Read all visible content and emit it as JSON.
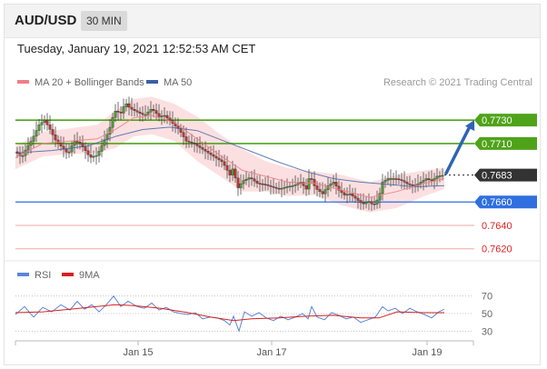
{
  "header": {
    "symbol": "AUD/USD",
    "interval": "30 MIN"
  },
  "timestamp": "Tuesday, January 19, 2021 12:52:53 AM CET",
  "legend": {
    "ma20": "MA 20 + Bollinger Bands",
    "ma50": "MA 50",
    "credit": "Research © 2021 Trading Central"
  },
  "colors": {
    "ma20": "#ee7f84",
    "ma50": "#3a60a6",
    "band": "#fbd5d7",
    "resistance": "#4fa319",
    "support": "#2f6fe0",
    "current": "#333333",
    "support_label_text": "#e02020",
    "arrow": "#2f64b4",
    "candle_up": "#4f9a2d",
    "candle_down": "#c8312a",
    "rsi": "#5a86d8",
    "rsi_ma": "#d8201e"
  },
  "chart_data": [
    {
      "type": "candlestick",
      "title": "AUD/USD",
      "interval": "30 MIN",
      "x_ticks": [
        "Jan 15",
        "Jan 17",
        "Jan 19"
      ],
      "ylim": [
        0.7612,
        0.7755
      ],
      "price_points": [
        [
          0,
          0.7703
        ],
        [
          7,
          0.7698
        ],
        [
          12,
          0.7706
        ],
        [
          18,
          0.7713
        ],
        [
          26,
          0.7726
        ],
        [
          32,
          0.773
        ],
        [
          38,
          0.7722
        ],
        [
          44,
          0.7713
        ],
        [
          52,
          0.7706
        ],
        [
          58,
          0.7701
        ],
        [
          64,
          0.7712
        ],
        [
          70,
          0.7711
        ],
        [
          76,
          0.7705
        ],
        [
          82,
          0.7698
        ],
        [
          90,
          0.77
        ],
        [
          96,
          0.771
        ],
        [
          103,
          0.7721
        ],
        [
          109,
          0.7738
        ],
        [
          116,
          0.7736
        ],
        [
          121,
          0.7745
        ],
        [
          126,
          0.774
        ],
        [
          134,
          0.7737
        ],
        [
          142,
          0.7734
        ],
        [
          150,
          0.774
        ],
        [
          158,
          0.7733
        ],
        [
          164,
          0.7734
        ],
        [
          172,
          0.7728
        ],
        [
          180,
          0.7722
        ],
        [
          188,
          0.7712
        ],
        [
          196,
          0.771
        ],
        [
          204,
          0.7706
        ],
        [
          212,
          0.7702
        ],
        [
          220,
          0.7698
        ],
        [
          228,
          0.7694
        ],
        [
          236,
          0.7683
        ],
        [
          240,
          0.769
        ],
        [
          244,
          0.7671
        ],
        [
          250,
          0.7678
        ],
        [
          258,
          0.7681
        ],
        [
          266,
          0.7676
        ],
        [
          274,
          0.7675
        ],
        [
          282,
          0.7673
        ],
        [
          290,
          0.7671
        ],
        [
          298,
          0.7673
        ],
        [
          306,
          0.7674
        ],
        [
          314,
          0.7677
        ],
        [
          320,
          0.7671
        ],
        [
          324,
          0.7683
        ],
        [
          330,
          0.7672
        ],
        [
          338,
          0.7667
        ],
        [
          344,
          0.7674
        ],
        [
          350,
          0.7677
        ],
        [
          356,
          0.767
        ],
        [
          362,
          0.7666
        ],
        [
          368,
          0.7667
        ],
        [
          376,
          0.7662
        ],
        [
          382,
          0.7658
        ],
        [
          388,
          0.7661
        ],
        [
          394,
          0.7657
        ],
        [
          400,
          0.7664
        ],
        [
          404,
          0.7677
        ],
        [
          410,
          0.768
        ],
        [
          418,
          0.768
        ],
        [
          426,
          0.7678
        ],
        [
          432,
          0.7675
        ],
        [
          440,
          0.7674
        ],
        [
          448,
          0.7678
        ],
        [
          452,
          0.768
        ],
        [
          458,
          0.7678
        ],
        [
          464,
          0.7682
        ],
        [
          472,
          0.7683
        ]
      ],
      "ma20": [
        [
          0,
          0.7698
        ],
        [
          30,
          0.771
        ],
        [
          60,
          0.7712
        ],
        [
          90,
          0.7714
        ],
        [
          110,
          0.7722
        ],
        [
          130,
          0.7732
        ],
        [
          150,
          0.7734
        ],
        [
          175,
          0.7728
        ],
        [
          200,
          0.7714
        ],
        [
          225,
          0.77
        ],
        [
          250,
          0.7687
        ],
        [
          275,
          0.7682
        ],
        [
          300,
          0.7677
        ],
        [
          330,
          0.7676
        ],
        [
          360,
          0.767
        ],
        [
          390,
          0.7664
        ],
        [
          420,
          0.7669
        ],
        [
          450,
          0.7676
        ],
        [
          472,
          0.768
        ]
      ],
      "ma50": [
        [
          0,
          0.7702
        ],
        [
          40,
          0.7704
        ],
        [
          80,
          0.7708
        ],
        [
          110,
          0.7716
        ],
        [
          140,
          0.7722
        ],
        [
          170,
          0.7724
        ],
        [
          200,
          0.7721
        ],
        [
          230,
          0.7712
        ],
        [
          260,
          0.7703
        ],
        [
          290,
          0.7694
        ],
        [
          320,
          0.7686
        ],
        [
          350,
          0.768
        ],
        [
          380,
          0.7677
        ],
        [
          410,
          0.7675
        ],
        [
          440,
          0.7673
        ],
        [
          472,
          0.7674
        ]
      ],
      "bollinger_upper": [
        [
          0,
          0.7708
        ],
        [
          30,
          0.772
        ],
        [
          60,
          0.7723
        ],
        [
          90,
          0.7726
        ],
        [
          110,
          0.7738
        ],
        [
          130,
          0.7748
        ],
        [
          150,
          0.775
        ],
        [
          175,
          0.7744
        ],
        [
          200,
          0.7733
        ],
        [
          225,
          0.7718
        ],
        [
          250,
          0.7705
        ],
        [
          275,
          0.7695
        ],
        [
          300,
          0.7689
        ],
        [
          330,
          0.7686
        ],
        [
          360,
          0.7683
        ],
        [
          390,
          0.7677
        ],
        [
          420,
          0.7683
        ],
        [
          450,
          0.7687
        ],
        [
          472,
          0.7689
        ]
      ],
      "bollinger_lower": [
        [
          0,
          0.7688
        ],
        [
          30,
          0.7699
        ],
        [
          60,
          0.7701
        ],
        [
          90,
          0.7702
        ],
        [
          110,
          0.7706
        ],
        [
          130,
          0.7716
        ],
        [
          150,
          0.7718
        ],
        [
          175,
          0.7712
        ],
        [
          200,
          0.7695
        ],
        [
          225,
          0.7682
        ],
        [
          250,
          0.7669
        ],
        [
          275,
          0.7669
        ],
        [
          300,
          0.7665
        ],
        [
          330,
          0.7666
        ],
        [
          360,
          0.7657
        ],
        [
          390,
          0.7651
        ],
        [
          420,
          0.7655
        ],
        [
          450,
          0.7665
        ],
        [
          472,
          0.7671
        ]
      ],
      "levels": [
        {
          "label": "0.7730",
          "value": 0.773,
          "kind": "resistance"
        },
        {
          "label": "0.7710",
          "value": 0.771,
          "kind": "resistance"
        },
        {
          "label": "0.7683",
          "value": 0.7683,
          "kind": "current"
        },
        {
          "label": "0.7660",
          "value": 0.766,
          "kind": "support"
        },
        {
          "label": "0.7640",
          "value": 0.764,
          "kind": "support_minor"
        },
        {
          "label": "0.7620",
          "value": 0.762,
          "kind": "support_minor"
        }
      ],
      "arrow": {
        "from": [
          472,
          0.7683
        ],
        "to": [
          505,
          0.773
        ]
      }
    },
    {
      "type": "line",
      "ylim": [
        20,
        80
      ],
      "y_ticks": [
        "70",
        "50",
        "30"
      ],
      "series": [
        {
          "name": "RSI",
          "points": [
            [
              0,
              49
            ],
            [
              10,
              58
            ],
            [
              20,
              46
            ],
            [
              30,
              57
            ],
            [
              40,
              52
            ],
            [
              50,
              60
            ],
            [
              60,
              54
            ],
            [
              68,
              64
            ],
            [
              76,
              55
            ],
            [
              84,
              60
            ],
            [
              92,
              52
            ],
            [
              100,
              60
            ],
            [
              108,
              70
            ],
            [
              116,
              58
            ],
            [
              124,
              64
            ],
            [
              134,
              58
            ],
            [
              142,
              56
            ],
            [
              150,
              62
            ],
            [
              158,
              54
            ],
            [
              166,
              57
            ],
            [
              174,
              52
            ],
            [
              182,
              50
            ],
            [
              190,
              49
            ],
            [
              198,
              51
            ],
            [
              206,
              44
            ],
            [
              214,
              46
            ],
            [
              222,
              45
            ],
            [
              230,
              42
            ],
            [
              236,
              37
            ],
            [
              240,
              47
            ],
            [
              246,
              30
            ],
            [
              252,
              52
            ],
            [
              260,
              47
            ],
            [
              268,
              51
            ],
            [
              276,
              45
            ],
            [
              284,
              42
            ],
            [
              292,
              47
            ],
            [
              300,
              43
            ],
            [
              308,
              46
            ],
            [
              316,
              50
            ],
            [
              322,
              44
            ],
            [
              326,
              58
            ],
            [
              332,
              46
            ],
            [
              340,
              43
            ],
            [
              348,
              51
            ],
            [
              356,
              48
            ],
            [
              364,
              44
            ],
            [
              372,
              46
            ],
            [
              380,
              40
            ],
            [
              388,
              43
            ],
            [
              396,
              46
            ],
            [
              404,
              58
            ],
            [
              410,
              53
            ],
            [
              418,
              56
            ],
            [
              426,
              50
            ],
            [
              434,
              56
            ],
            [
              442,
              52
            ],
            [
              450,
              49
            ],
            [
              458,
              45
            ],
            [
              466,
              52
            ],
            [
              472,
              55
            ]
          ]
        },
        {
          "name": "9MA",
          "points": [
            [
              0,
              51
            ],
            [
              30,
              52
            ],
            [
              60,
              55
            ],
            [
              90,
              58
            ],
            [
              110,
              60
            ],
            [
              130,
              59
            ],
            [
              160,
              56
            ],
            [
              190,
              51
            ],
            [
              215,
              46
            ],
            [
              240,
              42
            ],
            [
              260,
              44
            ],
            [
              290,
              45
            ],
            [
              320,
              47
            ],
            [
              350,
              48
            ],
            [
              380,
              45
            ],
            [
              400,
              45
            ],
            [
              420,
              52
            ],
            [
              450,
              51
            ],
            [
              472,
              51
            ]
          ]
        }
      ]
    }
  ]
}
